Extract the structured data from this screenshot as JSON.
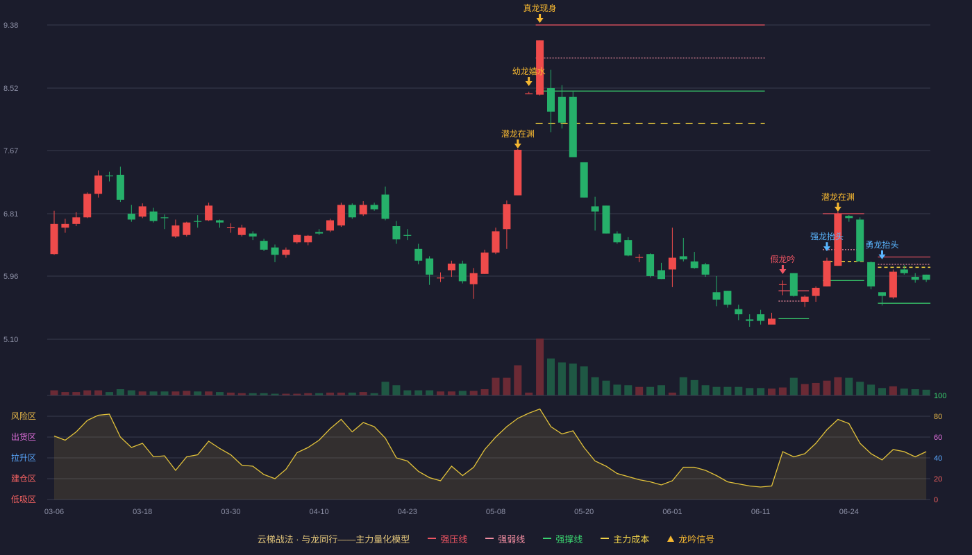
{
  "chart_data": [
    {
      "type": "candlestick",
      "y_ticks": [
        "9.38",
        "8.52",
        "7.67",
        "6.81",
        "5.96",
        "5.10"
      ],
      "ylim": [
        5.1,
        9.38
      ],
      "x_ticks": [
        {
          "index": 0,
          "label": "03-06"
        },
        {
          "index": 8,
          "label": "03-18"
        },
        {
          "index": 16,
          "label": "03-30"
        },
        {
          "index": 24,
          "label": "04-10"
        },
        {
          "index": 32,
          "label": "04-23"
        },
        {
          "index": 40,
          "label": "05-08"
        },
        {
          "index": 48,
          "label": "05-20"
        },
        {
          "index": 56,
          "label": "06-01"
        },
        {
          "index": 64,
          "label": "06-11"
        },
        {
          "index": 72,
          "label": "06-24"
        }
      ],
      "candles": [
        [
          6.26,
          6.67,
          6.25,
          6.85
        ],
        [
          6.62,
          6.67,
          6.55,
          6.74
        ],
        [
          6.67,
          6.76,
          6.64,
          6.83
        ],
        [
          6.76,
          7.08,
          6.75,
          7.1
        ],
        [
          7.08,
          7.33,
          7.03,
          7.4
        ],
        [
          7.33,
          7.32,
          7.25,
          7.38
        ],
        [
          7.34,
          7.0,
          6.97,
          7.45
        ],
        [
          6.81,
          6.73,
          6.7,
          6.93
        ],
        [
          6.77,
          6.91,
          6.75,
          6.95
        ],
        [
          6.84,
          6.71,
          6.69,
          6.89
        ],
        [
          6.76,
          6.75,
          6.6,
          6.8
        ],
        [
          6.5,
          6.65,
          6.48,
          6.73
        ],
        [
          6.52,
          6.69,
          6.5,
          6.7
        ],
        [
          6.71,
          6.7,
          6.62,
          6.79
        ],
        [
          6.72,
          6.92,
          6.71,
          6.96
        ],
        [
          6.72,
          6.69,
          6.62,
          6.73
        ],
        [
          6.62,
          6.63,
          6.55,
          6.68
        ],
        [
          6.52,
          6.62,
          6.5,
          6.66
        ],
        [
          6.54,
          6.5,
          6.45,
          6.57
        ],
        [
          6.44,
          6.32,
          6.3,
          6.47
        ],
        [
          6.35,
          6.25,
          6.15,
          6.39
        ],
        [
          6.25,
          6.32,
          6.21,
          6.35
        ],
        [
          6.42,
          6.52,
          6.4,
          6.53
        ],
        [
          6.42,
          6.51,
          6.38,
          6.52
        ],
        [
          6.56,
          6.54,
          6.52,
          6.6
        ],
        [
          6.58,
          6.72,
          6.56,
          6.74
        ],
        [
          6.65,
          6.93,
          6.63,
          6.96
        ],
        [
          6.93,
          6.76,
          6.74,
          6.95
        ],
        [
          6.8,
          6.93,
          6.78,
          6.98
        ],
        [
          6.93,
          6.87,
          6.85,
          6.96
        ],
        [
          7.07,
          6.74,
          6.72,
          7.18
        ],
        [
          6.64,
          6.46,
          6.4,
          6.71
        ],
        [
          6.52,
          6.51,
          6.45,
          6.6
        ],
        [
          6.33,
          6.17,
          6.12,
          6.4
        ],
        [
          6.2,
          5.98,
          5.84,
          6.23
        ],
        [
          5.93,
          5.94,
          5.88,
          6.01
        ],
        [
          6.04,
          6.13,
          5.95,
          6.17
        ],
        [
          6.13,
          5.89,
          5.86,
          6.17
        ],
        [
          5.85,
          6.0,
          5.65,
          6.07
        ],
        [
          5.99,
          6.28,
          5.99,
          6.32
        ],
        [
          6.28,
          6.57,
          6.26,
          6.62
        ],
        [
          6.6,
          6.94,
          6.33,
          6.99
        ],
        [
          7.06,
          7.68,
          7.06,
          7.69
        ],
        [
          8.45,
          8.45,
          8.45,
          8.47
        ],
        [
          8.43,
          9.17,
          8.42,
          9.17
        ],
        [
          8.52,
          8.2,
          7.92,
          8.77
        ],
        [
          8.4,
          8.05,
          7.97,
          8.56
        ],
        [
          8.4,
          7.58,
          7.58,
          8.47
        ],
        [
          7.51,
          7.03,
          7.03,
          7.51
        ],
        [
          6.91,
          6.84,
          6.58,
          7.04
        ],
        [
          6.92,
          6.54,
          6.54,
          6.92
        ],
        [
          6.54,
          6.42,
          6.4,
          6.57
        ],
        [
          6.45,
          6.24,
          6.23,
          6.49
        ],
        [
          6.22,
          6.22,
          6.15,
          6.26
        ],
        [
          6.26,
          5.96,
          5.94,
          6.27
        ],
        [
          6.04,
          5.92,
          5.92,
          6.14
        ],
        [
          6.05,
          6.21,
          5.81,
          6.62
        ],
        [
          6.23,
          6.19,
          6.16,
          6.48
        ],
        [
          6.16,
          6.07,
          6.06,
          6.29
        ],
        [
          6.12,
          5.98,
          5.95,
          6.14
        ],
        [
          5.74,
          5.64,
          5.55,
          5.96
        ],
        [
          5.76,
          5.57,
          5.53,
          5.76
        ],
        [
          5.51,
          5.44,
          5.36,
          5.57
        ],
        [
          5.37,
          5.35,
          5.27,
          5.44
        ],
        [
          5.44,
          5.35,
          5.3,
          5.5
        ],
        [
          5.3,
          5.38,
          5.33,
          5.46
        ],
        [
          5.85,
          5.85,
          5.7,
          5.9
        ],
        [
          6.0,
          5.69,
          5.68,
          6.0
        ],
        [
          5.61,
          5.68,
          5.54,
          5.7
        ],
        [
          5.69,
          5.8,
          5.61,
          5.82
        ],
        [
          5.82,
          6.17,
          5.82,
          6.21
        ],
        [
          6.1,
          6.81,
          6.1,
          6.84
        ],
        [
          6.78,
          6.75,
          6.7,
          6.79
        ],
        [
          6.73,
          6.16,
          6.17,
          6.76
        ],
        [
          6.15,
          5.82,
          5.78,
          6.16
        ],
        [
          5.74,
          5.69,
          5.56,
          5.74
        ],
        [
          5.67,
          6.02,
          5.65,
          6.05
        ],
        [
          6.05,
          6.0,
          5.98,
          6.11
        ],
        [
          5.95,
          5.91,
          5.87,
          6.0
        ],
        [
          5.98,
          5.91,
          5.88,
          5.98
        ]
      ],
      "annotations": [
        {
          "label": "真龙现身",
          "index": 44,
          "price": 9.38,
          "color": "#f5b731"
        },
        {
          "label": "幼龙嬉水",
          "index": 43,
          "price": 8.52,
          "color": "#f5b731"
        },
        {
          "label": "潜龙在渊",
          "index": 42,
          "price": 7.67,
          "color": "#f5b731"
        },
        {
          "label": "潜龙在渊",
          "index": 71,
          "price": 6.81,
          "color": "#f5b731"
        },
        {
          "label": "假龙吟",
          "index": 66,
          "price": 5.96,
          "color": "#f05563"
        },
        {
          "label": "强龙抬头",
          "index": 70,
          "price": 6.27,
          "color": "#5ab6ff"
        },
        {
          "label": "勇龙抬头",
          "index": 75,
          "price": 6.16,
          "color": "#5ab6ff"
        }
      ],
      "levels": [
        {
          "from": 44,
          "to": 64,
          "price": 9.38,
          "style": "solid",
          "color": "#f05563"
        },
        {
          "from": 44,
          "to": 64,
          "price": 8.93,
          "style": "dotted",
          "color": "#f38ea2"
        },
        {
          "from": 44,
          "to": 64,
          "price": 8.48,
          "style": "solid",
          "color": "#3ad36f"
        },
        {
          "from": 44,
          "to": 64,
          "price": 8.04,
          "style": "bigdash",
          "color": "#e7c93c"
        },
        {
          "from": 66,
          "to": 68,
          "price": 5.76,
          "style": "solid",
          "color": "#f05563"
        },
        {
          "from": 66,
          "to": 68,
          "price": 5.62,
          "style": "dotted",
          "color": "#f38ea2"
        },
        {
          "from": 66,
          "to": 68,
          "price": 5.38,
          "style": "solid",
          "color": "#3ad36f"
        },
        {
          "from": 70,
          "to": 73,
          "price": 6.81,
          "style": "solid",
          "color": "#f05563"
        },
        {
          "from": 70,
          "to": 73,
          "price": 6.32,
          "style": "dotted",
          "color": "#f38ea2"
        },
        {
          "from": 70,
          "to": 73,
          "price": 5.9,
          "style": "solid",
          "color": "#3ad36f"
        },
        {
          "from": 70,
          "to": 73,
          "price": 6.16,
          "style": "dash",
          "color": "#e7c93c"
        },
        {
          "from": 75,
          "to": 79,
          "price": 6.22,
          "style": "solid",
          "color": "#f05563"
        },
        {
          "from": 75,
          "to": 79,
          "price": 6.12,
          "style": "dotted",
          "color": "#f38ea2"
        },
        {
          "from": 75,
          "to": 79,
          "price": 5.59,
          "style": "solid",
          "color": "#3ad36f"
        },
        {
          "from": 75,
          "to": 79,
          "price": 6.08,
          "style": "dash",
          "color": "#e7c93c"
        }
      ]
    },
    {
      "type": "bar",
      "volumes": [
        9,
        6,
        6,
        9,
        9,
        6,
        11,
        9,
        7,
        7,
        7,
        7,
        8,
        7,
        7,
        6,
        5,
        4,
        4,
        4,
        3,
        3,
        3,
        4,
        4,
        5,
        5,
        5,
        6,
        4,
        24,
        18,
        9,
        9,
        9,
        7,
        7,
        8,
        8,
        11,
        31,
        31,
        53,
        5,
        100,
        65,
        58,
        56,
        51,
        32,
        26,
        19,
        18,
        15,
        15,
        18,
        5,
        32,
        27,
        18,
        15,
        15,
        15,
        13,
        13,
        12,
        14,
        31,
        20,
        22,
        26,
        32,
        31,
        24,
        19,
        13,
        16,
        12,
        11,
        10
      ],
      "colors": {
        "up": "#6b2a35",
        "down": "#1f5844"
      }
    },
    {
      "type": "line",
      "left_labels": [
        "风险区",
        "出货区",
        "拉升区",
        "建仓区",
        "低吸区"
      ],
      "y_ticks": [
        100,
        80,
        60,
        40,
        20,
        0
      ],
      "values": [
        61,
        57,
        65,
        76,
        81,
        82,
        60,
        50,
        54,
        41,
        42,
        28,
        41,
        43,
        56,
        49,
        43,
        33,
        32,
        24,
        20,
        29,
        45,
        50,
        57,
        68,
        77,
        65,
        74,
        70,
        59,
        40,
        37,
        27,
        21,
        18,
        32,
        23,
        31,
        48,
        60,
        70,
        78,
        83,
        87,
        70,
        63,
        66,
        50,
        37,
        32,
        25,
        22,
        19,
        17,
        14,
        18,
        31,
        31,
        28,
        23,
        17,
        15,
        13,
        12,
        13,
        46,
        41,
        44,
        54,
        67,
        77,
        73,
        54,
        44,
        38,
        48,
        46,
        41,
        46
      ]
    }
  ],
  "legend": {
    "title": "云梯战法 · 与龙同行——主力量化模型",
    "items": [
      {
        "label": "强压线",
        "color": "#f05563",
        "style": "solid"
      },
      {
        "label": "强弱线",
        "color": "#f38ea2",
        "style": "dotted"
      },
      {
        "label": "强撑线",
        "color": "#3ad36f",
        "style": "solid"
      },
      {
        "label": "主力成本",
        "color": "#f0d24a",
        "style": "dash"
      },
      {
        "label": "龙吟信号",
        "color": "#f5b731",
        "style": "triangle"
      }
    ]
  }
}
